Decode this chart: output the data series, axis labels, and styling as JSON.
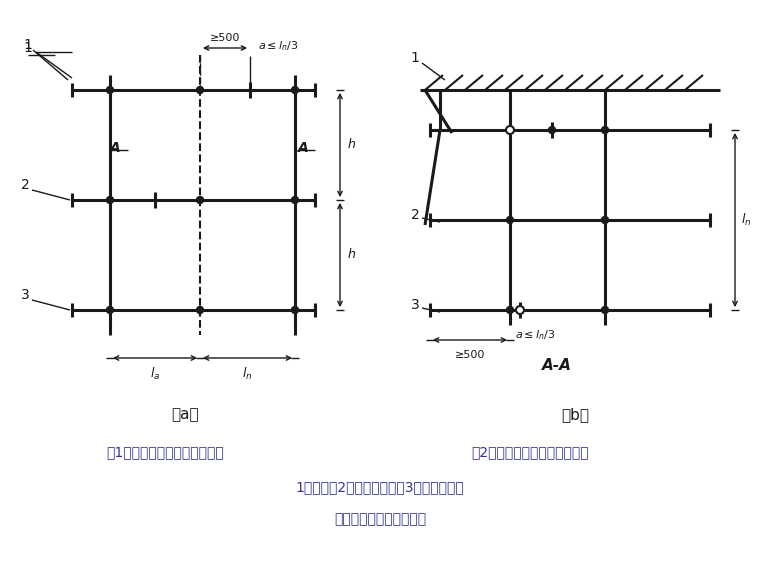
{
  "background_color": "#ffffff",
  "line_color": "#1a1a1a",
  "fig_width": 7.6,
  "fig_height": 5.7,
  "caption_1": "（1）接头不在同步内（立面）",
  "caption_2": "（2）接头不在同跨内（平面）",
  "caption_3": "1－立杆；2－纵向水平杆；3－横向水平杆",
  "caption_4": "纵向水平杆对接接头布置",
  "label_a": "（a）",
  "label_b": "（b）",
  "label_AA": "A-A"
}
